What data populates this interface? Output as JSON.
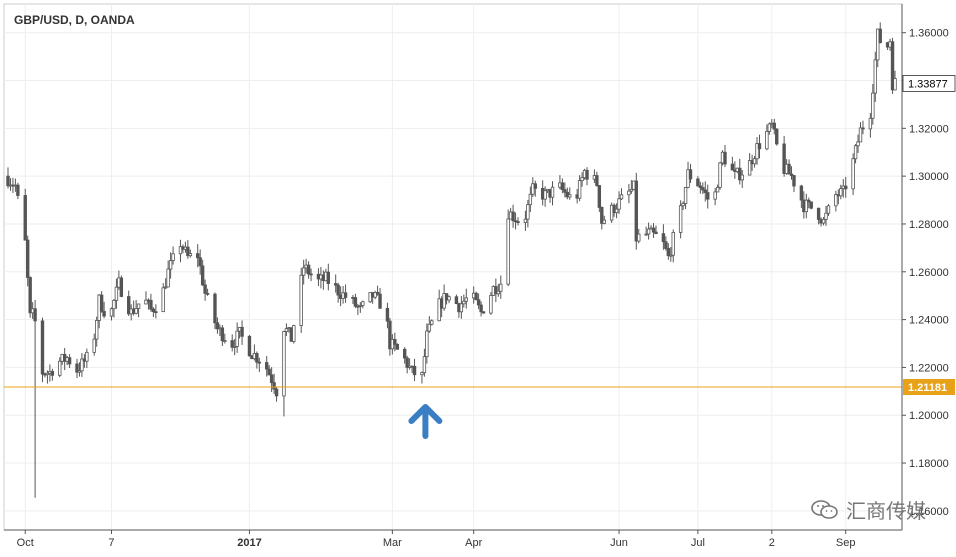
{
  "header": {
    "symbol_title": "GBP/USD, D, OANDA"
  },
  "watermark": {
    "text": "汇商传媒",
    "icon": "wechat-bubbles-icon"
  },
  "annotation": {
    "icon": "up-arrow-icon",
    "color": "#3a7fc4",
    "at_x_date": "2017-03-14"
  },
  "colors": {
    "candle": "#555555",
    "grid": "#eeeeee",
    "price_line": "#e8a21a",
    "price_badge_bg": "#e8a21a",
    "axis_text": "#333333"
  },
  "chart_data": {
    "type": "candlestick",
    "symbol": "GBP/USD",
    "interval": "D",
    "source": "OANDA",
    "x_range": [
      "2016-09-26",
      "2017-09-21"
    ],
    "ylim": [
      1.152,
      1.372
    ],
    "grid": true,
    "y_ticks": [
      "1.16000",
      "1.18000",
      "1.20000",
      "1.22000",
      "1.24000",
      "1.26000",
      "1.28000",
      "1.30000",
      "1.32000",
      "1.34000",
      "1.36000"
    ],
    "x_ticks": [
      {
        "label": "Oct",
        "date": "2016-10-03"
      },
      {
        "label": "7",
        "date": "2016-11-07"
      },
      {
        "label": "2017",
        "date": "2017-01-02"
      },
      {
        "label": "Mar",
        "date": "2017-03-01"
      },
      {
        "label": "Apr",
        "date": "2017-04-03"
      },
      {
        "label": "Jun",
        "date": "2017-06-01"
      },
      {
        "label": "Jul",
        "date": "2017-07-03"
      },
      {
        "label": "2",
        "date": "2017-08-02"
      },
      {
        "label": "Sep",
        "date": "2017-09-01"
      }
    ],
    "last_price": {
      "value": 1.33877,
      "label": "1.33877"
    },
    "horizontal_line": {
      "value": 1.21181,
      "label": "1.21181"
    },
    "path": [
      [
        "2016-09-26",
        1.3
      ],
      [
        "2016-09-30",
        1.296
      ],
      [
        "2016-10-04",
        1.272
      ],
      [
        "2016-10-06",
        1.241
      ],
      [
        "2016-10-07",
        1.242
      ],
      [
        "2016-10-10",
        1.233
      ],
      [
        "2016-10-11",
        1.218
      ],
      [
        "2016-10-14",
        1.218
      ],
      [
        "2016-10-17",
        1.222
      ],
      [
        "2016-10-21",
        1.224
      ],
      [
        "2016-10-25",
        1.219
      ],
      [
        "2016-10-31",
        1.226
      ],
      [
        "2016-11-03",
        1.248
      ],
      [
        "2016-11-07",
        1.24
      ],
      [
        "2016-11-11",
        1.255
      ],
      [
        "2016-11-16",
        1.243
      ],
      [
        "2016-11-21",
        1.249
      ],
      [
        "2016-11-24",
        1.244
      ],
      [
        "2016-11-28",
        1.248
      ],
      [
        "2016-12-01",
        1.26
      ],
      [
        "2016-12-06",
        1.272
      ],
      [
        "2016-12-09",
        1.266
      ],
      [
        "2016-12-13",
        1.267
      ],
      [
        "2016-12-16",
        1.251
      ],
      [
        "2016-12-21",
        1.236
      ],
      [
        "2016-12-27",
        1.23
      ],
      [
        "2016-12-30",
        1.234
      ],
      [
        "2017-01-04",
        1.226
      ],
      [
        "2017-01-09",
        1.222
      ],
      [
        "2017-01-13",
        1.213
      ],
      [
        "2017-01-16",
        1.205
      ],
      [
        "2017-01-17",
        1.237
      ],
      [
        "2017-01-20",
        1.232
      ],
      [
        "2017-01-25",
        1.262
      ],
      [
        "2017-01-31",
        1.256
      ],
      [
        "2017-02-03",
        1.257
      ],
      [
        "2017-02-08",
        1.252
      ],
      [
        "2017-02-13",
        1.248
      ],
      [
        "2017-02-17",
        1.244
      ],
      [
        "2017-02-22",
        1.25
      ],
      [
        "2017-02-27",
        1.245
      ],
      [
        "2017-03-01",
        1.23
      ],
      [
        "2017-03-06",
        1.225
      ],
      [
        "2017-03-10",
        1.218
      ],
      [
        "2017-03-14",
        1.216
      ],
      [
        "2017-03-16",
        1.233
      ],
      [
        "2017-03-21",
        1.246
      ],
      [
        "2017-03-24",
        1.25
      ],
      [
        "2017-03-29",
        1.246
      ],
      [
        "2017-04-03",
        1.25
      ],
      [
        "2017-04-07",
        1.243
      ],
      [
        "2017-04-12",
        1.253
      ],
      [
        "2017-04-17",
        1.257
      ],
      [
        "2017-04-18",
        1.285
      ],
      [
        "2017-04-24",
        1.28
      ],
      [
        "2017-04-28",
        1.294
      ],
      [
        "2017-05-03",
        1.292
      ],
      [
        "2017-05-09",
        1.295
      ],
      [
        "2017-05-15",
        1.289
      ],
      [
        "2017-05-19",
        1.302
      ],
      [
        "2017-05-24",
        1.297
      ],
      [
        "2017-05-26",
        1.281
      ],
      [
        "2017-05-31",
        1.287
      ],
      [
        "2017-06-05",
        1.292
      ],
      [
        "2017-06-08",
        1.295
      ],
      [
        "2017-06-09",
        1.274
      ],
      [
        "2017-06-14",
        1.276
      ],
      [
        "2017-06-19",
        1.274
      ],
      [
        "2017-06-22",
        1.266
      ],
      [
        "2017-06-27",
        1.285
      ],
      [
        "2017-06-30",
        1.301
      ],
      [
        "2017-07-05",
        1.296
      ],
      [
        "2017-07-10",
        1.287
      ],
      [
        "2017-07-14",
        1.309
      ],
      [
        "2017-07-19",
        1.3
      ],
      [
        "2017-07-24",
        1.303
      ],
      [
        "2017-07-28",
        1.312
      ],
      [
        "2017-08-03",
        1.321
      ],
      [
        "2017-08-07",
        1.304
      ],
      [
        "2017-08-11",
        1.3
      ],
      [
        "2017-08-16",
        1.288
      ],
      [
        "2017-08-21",
        1.286
      ],
      [
        "2017-08-24",
        1.281
      ],
      [
        "2017-08-29",
        1.292
      ],
      [
        "2017-09-01",
        1.293
      ],
      [
        "2017-09-05",
        1.306
      ],
      [
        "2017-09-08",
        1.319
      ],
      [
        "2017-09-12",
        1.327
      ],
      [
        "2017-09-15",
        1.359
      ],
      [
        "2017-09-18",
        1.352
      ],
      [
        "2017-09-20",
        1.357
      ],
      [
        "2017-09-21",
        1.339
      ]
    ]
  }
}
